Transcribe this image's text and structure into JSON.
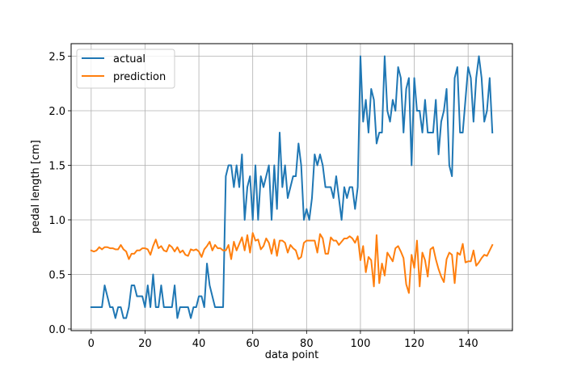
{
  "chart_data": {
    "type": "line",
    "xlabel": "data point",
    "ylabel": "pedal length [cm]",
    "xlim": [
      -7.45,
      156.45
    ],
    "ylim": [
      -0.015,
      2.615
    ],
    "xticks": [
      0,
      20,
      40,
      60,
      80,
      100,
      120,
      140
    ],
    "yticks": [
      0.0,
      0.5,
      1.0,
      1.5,
      2.0,
      2.5
    ],
    "xtick_labels": [
      "0",
      "20",
      "40",
      "60",
      "80",
      "100",
      "120",
      "140"
    ],
    "ytick_labels": [
      "0.0",
      "0.5",
      "1.0",
      "1.5",
      "2.0",
      "2.5"
    ],
    "grid": true,
    "legend": "top-left",
    "series": [
      {
        "name": "actual",
        "color": "#1f77b4",
        "values": [
          0.2,
          0.2,
          0.2,
          0.2,
          0.2,
          0.4,
          0.3,
          0.2,
          0.2,
          0.1,
          0.2,
          0.2,
          0.1,
          0.1,
          0.2,
          0.4,
          0.4,
          0.3,
          0.3,
          0.3,
          0.2,
          0.4,
          0.2,
          0.5,
          0.2,
          0.2,
          0.4,
          0.2,
          0.2,
          0.2,
          0.2,
          0.4,
          0.1,
          0.2,
          0.2,
          0.2,
          0.2,
          0.1,
          0.2,
          0.2,
          0.3,
          0.3,
          0.2,
          0.6,
          0.4,
          0.3,
          0.2,
          0.2,
          0.2,
          0.2,
          1.4,
          1.5,
          1.5,
          1.3,
          1.5,
          1.3,
          1.6,
          1.0,
          1.3,
          1.4,
          1.0,
          1.5,
          1.0,
          1.4,
          1.3,
          1.4,
          1.5,
          1.0,
          1.5,
          1.1,
          1.8,
          1.3,
          1.5,
          1.2,
          1.3,
          1.4,
          1.4,
          1.7,
          1.5,
          1.0,
          1.1,
          1.0,
          1.2,
          1.6,
          1.5,
          1.6,
          1.5,
          1.3,
          1.3,
          1.3,
          1.2,
          1.4,
          1.2,
          1.0,
          1.3,
          1.2,
          1.3,
          1.3,
          1.1,
          1.3,
          2.5,
          1.9,
          2.1,
          1.8,
          2.2,
          2.1,
          1.7,
          1.8,
          1.8,
          2.5,
          2.0,
          1.9,
          2.1,
          2.0,
          2.4,
          2.3,
          1.8,
          2.2,
          2.3,
          1.5,
          2.3,
          2.0,
          2.0,
          1.8,
          2.1,
          1.8,
          1.8,
          1.8,
          2.1,
          1.6,
          1.9,
          2.0,
          2.2,
          1.5,
          1.4,
          2.3,
          2.4,
          1.8,
          1.8,
          2.1,
          2.4,
          2.3,
          1.9,
          2.3,
          2.5,
          2.3,
          1.9,
          2.0,
          2.3,
          1.8
        ]
      },
      {
        "name": "prediction",
        "color": "#ff7f0e",
        "values": [
          0.72,
          0.71,
          0.72,
          0.75,
          0.73,
          0.75,
          0.75,
          0.74,
          0.74,
          0.73,
          0.73,
          0.77,
          0.73,
          0.71,
          0.64,
          0.69,
          0.69,
          0.72,
          0.72,
          0.74,
          0.74,
          0.73,
          0.68,
          0.76,
          0.82,
          0.74,
          0.76,
          0.72,
          0.71,
          0.77,
          0.75,
          0.71,
          0.75,
          0.7,
          0.72,
          0.68,
          0.67,
          0.73,
          0.72,
          0.73,
          0.71,
          0.66,
          0.73,
          0.76,
          0.8,
          0.72,
          0.77,
          0.74,
          0.74,
          0.72,
          0.72,
          0.77,
          0.64,
          0.8,
          0.72,
          0.78,
          0.84,
          0.72,
          0.86,
          0.7,
          0.88,
          0.81,
          0.82,
          0.73,
          0.76,
          0.83,
          0.79,
          0.69,
          0.82,
          0.67,
          0.81,
          0.81,
          0.79,
          0.7,
          0.77,
          0.74,
          0.72,
          0.64,
          0.66,
          0.79,
          0.81,
          0.81,
          0.81,
          0.81,
          0.7,
          0.87,
          0.83,
          0.69,
          0.69,
          0.84,
          0.81,
          0.81,
          0.77,
          0.8,
          0.83,
          0.83,
          0.85,
          0.83,
          0.79,
          0.85,
          0.63,
          0.76,
          0.52,
          0.66,
          0.63,
          0.39,
          0.86,
          0.42,
          0.6,
          0.49,
          0.7,
          0.66,
          0.62,
          0.74,
          0.76,
          0.71,
          0.65,
          0.41,
          0.33,
          0.68,
          0.56,
          0.81,
          0.39,
          0.7,
          0.63,
          0.48,
          0.73,
          0.75,
          0.64,
          0.55,
          0.48,
          0.43,
          0.64,
          0.7,
          0.68,
          0.42,
          0.7,
          0.68,
          0.78,
          0.61,
          0.62,
          0.62,
          0.72,
          0.58,
          0.61,
          0.65,
          0.68,
          0.67,
          0.72,
          0.77
        ]
      }
    ]
  }
}
